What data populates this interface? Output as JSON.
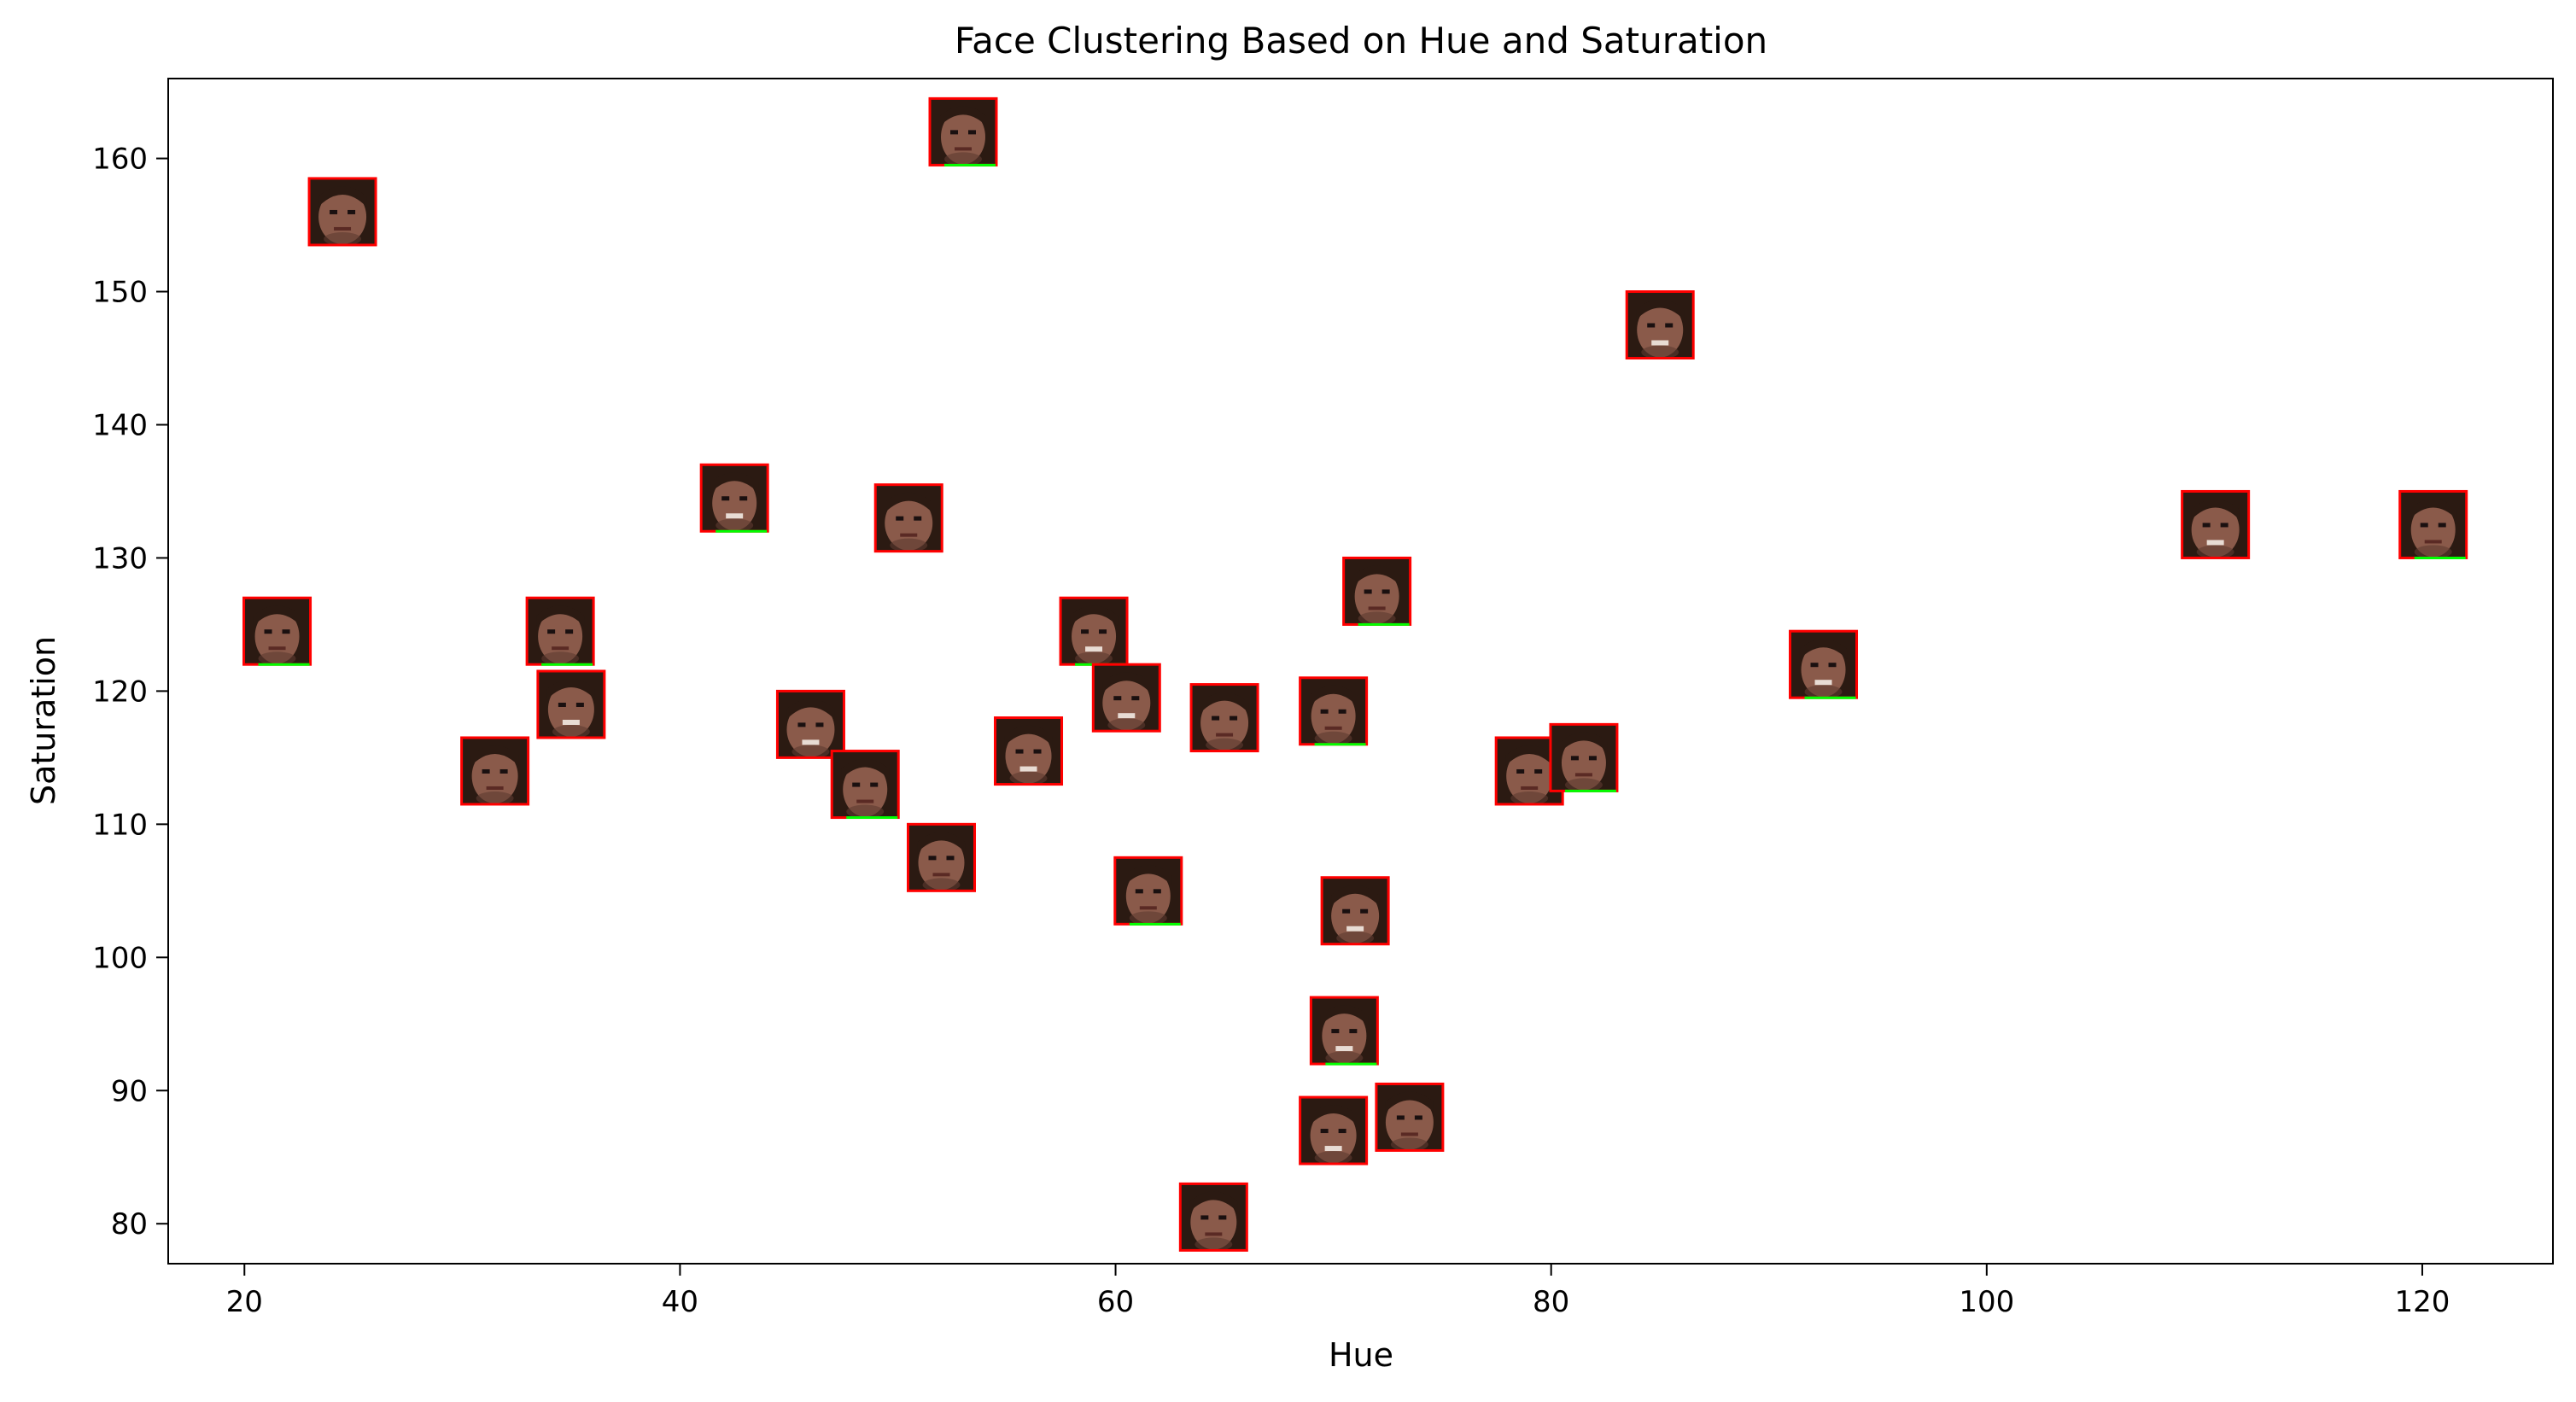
{
  "chart_data": {
    "type": "scatter",
    "title": "Face Clustering Based on Hue and Saturation",
    "xlabel": "Hue",
    "ylabel": "Saturation",
    "xlim": [
      16.5,
      126
    ],
    "ylim": [
      77,
      166
    ],
    "xticks": [
      20,
      40,
      60,
      80,
      100,
      120
    ],
    "yticks": [
      80,
      90,
      100,
      110,
      120,
      130,
      140,
      150,
      160
    ],
    "grid": false,
    "marker": "face-thumbnail",
    "colors": {
      "frame": "#ff0000",
      "frame_secondary": "#00ff00",
      "hair": "#2b1a12",
      "skin": "#8a5a4a",
      "face_shadow": "#5e3a30",
      "eyes": "#1a1010",
      "mouth": "#5a2a24",
      "teeth": "#e8dcd4"
    },
    "points": [
      {
        "x": 21.5,
        "y": 124.5
      },
      {
        "x": 24.5,
        "y": 156
      },
      {
        "x": 31.5,
        "y": 114
      },
      {
        "x": 34.5,
        "y": 124.5
      },
      {
        "x": 35,
        "y": 119
      },
      {
        "x": 42.5,
        "y": 134.5
      },
      {
        "x": 46,
        "y": 117.5
      },
      {
        "x": 48.5,
        "y": 113
      },
      {
        "x": 50.5,
        "y": 133
      },
      {
        "x": 52,
        "y": 107.5
      },
      {
        "x": 53,
        "y": 162
      },
      {
        "x": 56,
        "y": 115.5
      },
      {
        "x": 59,
        "y": 124.5
      },
      {
        "x": 60.5,
        "y": 119.5
      },
      {
        "x": 61.5,
        "y": 105
      },
      {
        "x": 65,
        "y": 118
      },
      {
        "x": 64.5,
        "y": 80.5
      },
      {
        "x": 70,
        "y": 118.5
      },
      {
        "x": 70,
        "y": 87
      },
      {
        "x": 70.5,
        "y": 94.5
      },
      {
        "x": 71,
        "y": 103.5
      },
      {
        "x": 72,
        "y": 127.5
      },
      {
        "x": 73.5,
        "y": 88
      },
      {
        "x": 79,
        "y": 114
      },
      {
        "x": 81.5,
        "y": 115
      },
      {
        "x": 85,
        "y": 147.5
      },
      {
        "x": 92.5,
        "y": 122
      },
      {
        "x": 110.5,
        "y": 132.5
      },
      {
        "x": 120.5,
        "y": 132.5
      }
    ]
  }
}
